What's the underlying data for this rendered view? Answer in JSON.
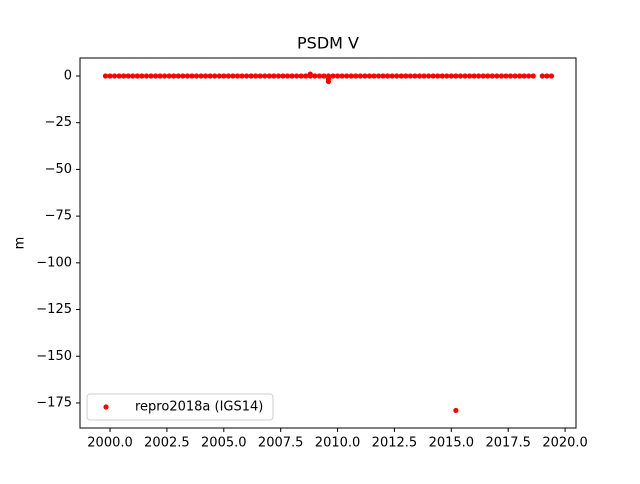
{
  "chart_data": {
    "type": "scatter",
    "title": "PSDM V",
    "y_label": "m",
    "xlim": [
      1998.68,
      2020.48
    ],
    "ylim": [
      -188.4,
      9.63
    ],
    "xticks": [
      {
        "value": 2000,
        "label": "2000.0"
      },
      {
        "value": 2002.5,
        "label": "2002.5"
      },
      {
        "value": 2005,
        "label": "2005.0"
      },
      {
        "value": 2007.5,
        "label": "2007.5"
      },
      {
        "value": 2010,
        "label": "2010.0"
      },
      {
        "value": 2012.5,
        "label": "2012.5"
      },
      {
        "value": 2015,
        "label": "2015.0"
      },
      {
        "value": 2017.5,
        "label": "2017.5"
      },
      {
        "value": 2020,
        "label": "2020.0"
      }
    ],
    "yticks": [
      0,
      {
        "value": -25,
        "label": "−25"
      },
      {
        "value": -50,
        "label": "−50"
      },
      {
        "value": -75,
        "label": "−75"
      },
      {
        "value": -100,
        "label": "−100"
      },
      {
        "value": -125,
        "label": "−125"
      },
      {
        "value": -150,
        "label": "−150"
      },
      {
        "value": -175,
        "label": "−175"
      }
    ],
    "legend": "lower left",
    "series": [
      {
        "name": "repro2018a (IGS14)",
        "color": "#ff0000",
        "x": [
          1999.8,
          2000,
          2000.2,
          2000.4,
          2000.6,
          2000.8,
          2001,
          2001.2,
          2001.4,
          2001.6,
          2001.8,
          2002,
          2002.2,
          2002.4,
          2002.6,
          2002.8,
          2003,
          2003.2,
          2003.4,
          2003.6,
          2003.8,
          2004,
          2004.2,
          2004.4,
          2004.6,
          2004.8,
          2005,
          2005.2,
          2005.4,
          2005.6,
          2005.8,
          2006,
          2006.2,
          2006.4,
          2006.6,
          2006.8,
          2007,
          2007.2,
          2007.4,
          2007.6,
          2007.8,
          2008,
          2008.2,
          2008.4,
          2008.6,
          2008.8,
          2009,
          2009.2,
          2009.4,
          2009.6,
          2009.8,
          2010,
          2010.2,
          2010.4,
          2010.6,
          2010.8,
          2011,
          2011.2,
          2011.4,
          2011.6,
          2011.8,
          2012,
          2012.2,
          2012.4,
          2012.6,
          2012.8,
          2013,
          2013.2,
          2013.4,
          2013.6,
          2013.8,
          2014,
          2014.2,
          2014.4,
          2014.6,
          2014.8,
          2015,
          2015.2,
          2015.4,
          2015.6,
          2015.8,
          2016,
          2016.2,
          2016.4,
          2016.6,
          2016.8,
          2017,
          2017.2,
          2017.4,
          2017.6,
          2017.8,
          2018,
          2018.2,
          2018.4,
          2018.6,
          2019,
          2019.2,
          2019.4,
          2008.8,
          2009.6,
          2009.6,
          2015.2
        ],
        "values": [
          0,
          0,
          0,
          0,
          0,
          0,
          0,
          0,
          0,
          0,
          0,
          0,
          0,
          0,
          0,
          0,
          0,
          0,
          0,
          0,
          0,
          0,
          0,
          0,
          0,
          0,
          0,
          0,
          0,
          0,
          0,
          0,
          0,
          0,
          0,
          0,
          0,
          0,
          0,
          0,
          0,
          0,
          0,
          0,
          0,
          0,
          0,
          0,
          0,
          0,
          0,
          0,
          0,
          0,
          0,
          0,
          0,
          0,
          0,
          0,
          0,
          0,
          0,
          0,
          0,
          0,
          0,
          0,
          0,
          0,
          0,
          0,
          0,
          0,
          0,
          0,
          0,
          0,
          0,
          0,
          0,
          0,
          0,
          0,
          0,
          0,
          0,
          0,
          0,
          0,
          0,
          0,
          0,
          0,
          0,
          0,
          0,
          0,
          1,
          -3,
          -1.5,
          -179
        ]
      }
    ]
  }
}
